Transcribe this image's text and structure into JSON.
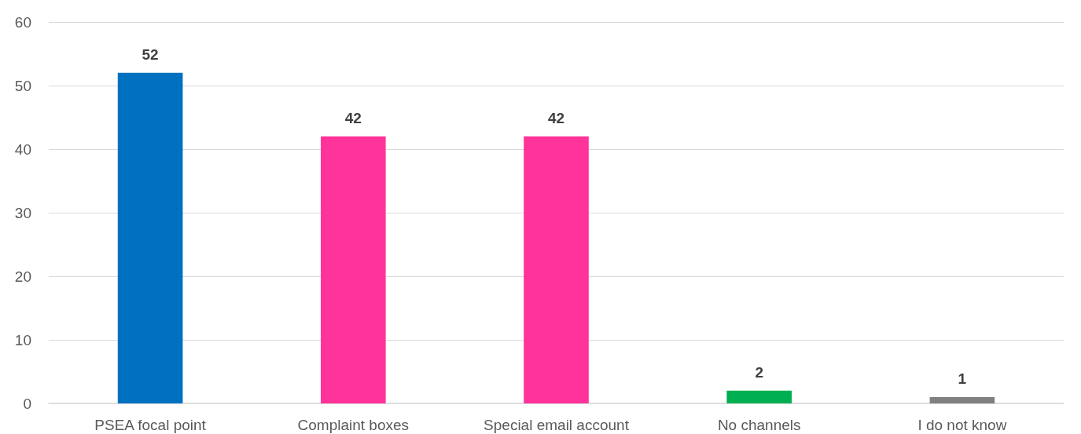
{
  "chart_data": {
    "type": "bar",
    "categories": [
      "PSEA focal point",
      "Complaint boxes",
      "Special email account",
      "No channels",
      "I do not know"
    ],
    "values": [
      52,
      42,
      42,
      2,
      1
    ],
    "colors": [
      "#0070c0",
      "#ff3399",
      "#ff3399",
      "#00b050",
      "#808080"
    ],
    "ylim": [
      0,
      60
    ],
    "yticks": [
      0,
      10,
      20,
      30,
      40,
      50,
      60
    ],
    "grid": "y",
    "data_labels": true
  }
}
